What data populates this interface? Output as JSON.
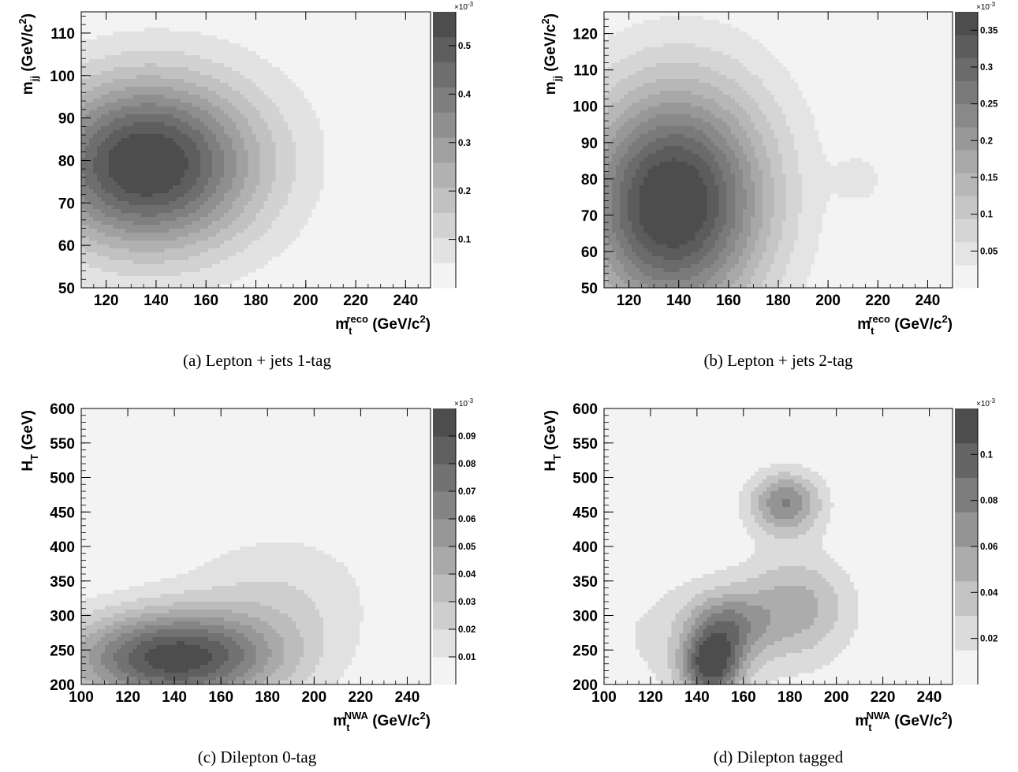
{
  "panels": [
    {
      "caption": "(a) Lepton + jets 1-tag",
      "xlabel": {
        "main": "m",
        "sub": "t",
        "sup": "reco",
        "unit": " (GeV/c",
        "unit_sup": "2",
        "close": ")"
      },
      "ylabel": {
        "main": "m",
        "sub": "jj",
        "unit": " (GeV/c",
        "unit_sup": "2",
        "close": ")"
      },
      "colorbar_exponent": "×10",
      "colorbar_exponent_power": "-3"
    },
    {
      "caption": "(b) Lepton + jets 2-tag",
      "xlabel": {
        "main": "m",
        "sub": "t",
        "sup": "reco",
        "unit": " (GeV/c",
        "unit_sup": "2",
        "close": ")"
      },
      "ylabel": {
        "main": "m",
        "sub": "jj",
        "unit": " (GeV/c",
        "unit_sup": "2",
        "close": ")"
      },
      "colorbar_exponent": "×10",
      "colorbar_exponent_power": "-3"
    },
    {
      "caption": "(c) Dilepton 0-tag",
      "xlabel": {
        "main": "m",
        "sub": "t",
        "sup": "NWA",
        "unit": " (GeV/c",
        "unit_sup": "2",
        "close": ")"
      },
      "ylabel": {
        "main": "H",
        "sub": "T",
        "unit": " (GeV)",
        "unit_sup": "",
        "close": ""
      },
      "colorbar_exponent": "×10",
      "colorbar_exponent_power": "-3"
    },
    {
      "caption": "(d) Dilepton tagged",
      "xlabel": {
        "main": "m",
        "sub": "t",
        "sup": "NWA",
        "unit": " (GeV/c",
        "unit_sup": "2",
        "close": ")"
      },
      "ylabel": {
        "main": "H",
        "sub": "T",
        "unit": " (GeV)",
        "unit_sup": "",
        "close": ""
      },
      "colorbar_exponent": "×10",
      "colorbar_exponent_power": "-3"
    }
  ],
  "chart_data": [
    {
      "type": "heatmap",
      "xlim": [
        110,
        250
      ],
      "ylim": [
        50,
        115
      ],
      "xticks": [
        "120",
        "140",
        "160",
        "180",
        "200",
        "220",
        "240"
      ],
      "yticks": [
        "50",
        "60",
        "70",
        "80",
        "90",
        "100",
        "110"
      ],
      "zlim": [
        0,
        0.57
      ],
      "zticks": [
        "0.1",
        "0.2",
        "0.3",
        "0.4",
        "0.5"
      ],
      "levels": 11,
      "blobs": [
        {
          "x": 135,
          "y": 79,
          "sx": 30,
          "sy": 14,
          "amp": 0.56
        },
        {
          "x": 165,
          "y": 82,
          "sx": 34,
          "sy": 18,
          "amp": 0.05
        }
      ]
    },
    {
      "type": "heatmap",
      "xlim": [
        110,
        250
      ],
      "ylim": [
        50,
        126
      ],
      "xticks": [
        "120",
        "140",
        "160",
        "180",
        "200",
        "220",
        "240"
      ],
      "yticks": [
        "50",
        "60",
        "70",
        "80",
        "90",
        "100",
        "110",
        "120"
      ],
      "zlim": [
        0,
        0.375
      ],
      "zticks": [
        "0.05",
        "0.1",
        "0.15",
        "0.2",
        "0.25",
        "0.3",
        "0.35"
      ],
      "levels": 12,
      "blobs": [
        {
          "x": 137,
          "y": 72,
          "sx": 26,
          "sy": 22,
          "amp": 0.37
        },
        {
          "x": 150,
          "y": 90,
          "sx": 30,
          "sy": 22,
          "amp": 0.04
        },
        {
          "x": 213,
          "y": 80,
          "sx": 7,
          "sy": 5,
          "amp": 0.04
        }
      ]
    },
    {
      "type": "heatmap",
      "xlim": [
        100,
        250
      ],
      "ylim": [
        200,
        600
      ],
      "xticks": [
        "100",
        "120",
        "140",
        "160",
        "180",
        "200",
        "220",
        "240"
      ],
      "yticks": [
        "200",
        "250",
        "300",
        "350",
        "400",
        "450",
        "500",
        "550",
        "600"
      ],
      "zlim": [
        0,
        0.1
      ],
      "zticks": [
        "0.01",
        "0.02",
        "0.03",
        "0.04",
        "0.05",
        "0.06",
        "0.07",
        "0.08",
        "0.09"
      ],
      "levels": 10,
      "blobs": [
        {
          "x": 140,
          "y": 238,
          "sx": 32,
          "sy": 48,
          "amp": 0.096
        },
        {
          "x": 185,
          "y": 330,
          "sx": 30,
          "sy": 70,
          "amp": 0.018
        }
      ]
    },
    {
      "type": "heatmap",
      "xlim": [
        100,
        250
      ],
      "ylim": [
        200,
        600
      ],
      "xticks": [
        "100",
        "120",
        "140",
        "160",
        "180",
        "200",
        "220",
        "240"
      ],
      "yticks": [
        "200",
        "250",
        "300",
        "350",
        "400",
        "450",
        "500",
        "550",
        "600"
      ],
      "zlim": [
        0,
        0.12
      ],
      "zticks": [
        "0.02",
        "0.04",
        "0.06",
        "0.08",
        "0.1"
      ],
      "levels": 8,
      "blobs": [
        {
          "x": 146,
          "y": 225,
          "sx": 9,
          "sy": 32,
          "amp": 0.1
        },
        {
          "x": 152,
          "y": 285,
          "sx": 12,
          "sy": 34,
          "amp": 0.06
        },
        {
          "x": 183,
          "y": 315,
          "sx": 16,
          "sy": 52,
          "amp": 0.045
        },
        {
          "x": 178,
          "y": 463,
          "sx": 11,
          "sy": 32,
          "amp": 0.075
        },
        {
          "x": 140,
          "y": 270,
          "sx": 42,
          "sy": 75,
          "amp": 0.018
        }
      ]
    }
  ]
}
